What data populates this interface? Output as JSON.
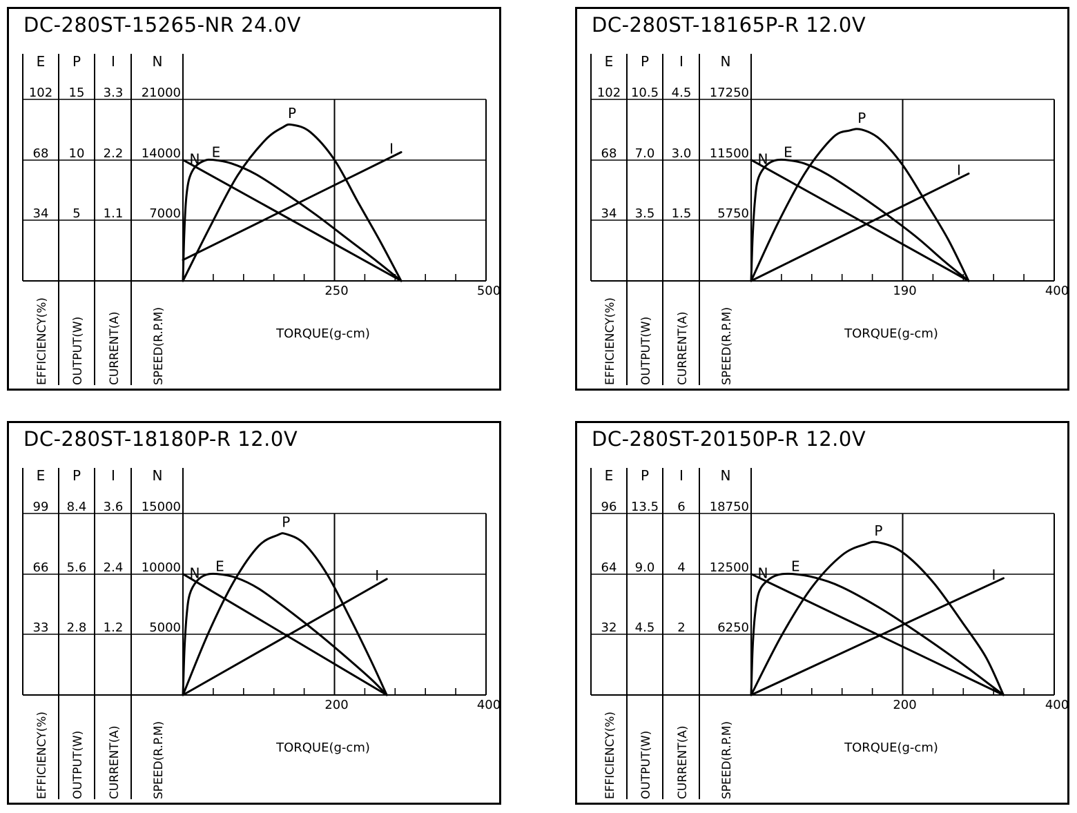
{
  "chart_data": [
    {
      "type": "line",
      "title": "DC-280ST-15265-NR   24.0V",
      "xlabel": "TORQUE(g-cm)",
      "xlim": [
        0,
        500
      ],
      "x_ticks": [
        "250",
        "500"
      ],
      "column_headers": [
        "E",
        "P",
        "I",
        "N"
      ],
      "axis_labels": [
        "EFFICIENCY(%)",
        "OUTPUT(W)",
        "CURRENT(A)",
        "SPEED(R.P.M)"
      ],
      "scales": {
        "E": [
          "102",
          "68",
          "34"
        ],
        "P": [
          "15",
          "10",
          "5"
        ],
        "I": [
          "3.3",
          "2.2",
          "1.1"
        ],
        "N": [
          "21000",
          "14000",
          "7000"
        ]
      },
      "curve_labels": [
        "N",
        "E",
        "P",
        "I"
      ],
      "series": [
        {
          "name": "N",
          "unit": "RPM",
          "points": [
            [
              0,
              14000
            ],
            [
              360,
              0
            ]
          ]
        },
        {
          "name": "I",
          "unit": "A",
          "points": [
            [
              0,
              0.38
            ],
            [
              360,
              2.34
            ]
          ]
        },
        {
          "name": "P",
          "unit": "W",
          "points": [
            [
              0,
              0
            ],
            [
              45,
              4.5
            ],
            [
              90,
              8.7
            ],
            [
              135,
              11.6
            ],
            [
              165,
              12.7
            ],
            [
              180,
              12.9
            ],
            [
              210,
              12.3
            ],
            [
              250,
              10.0
            ],
            [
              290,
              6.4
            ],
            [
              325,
              3.3
            ],
            [
              360,
              0
            ]
          ]
        },
        {
          "name": "E",
          "unit": "%",
          "points": [
            [
              0,
              0
            ],
            [
              2,
              25
            ],
            [
              5,
              45
            ],
            [
              10,
              57
            ],
            [
              20,
              64
            ],
            [
              35,
              67.5
            ],
            [
              50,
              68
            ],
            [
              80,
              66
            ],
            [
              120,
              60
            ],
            [
              170,
              49
            ],
            [
              220,
              37
            ],
            [
              270,
              24
            ],
            [
              320,
              11
            ],
            [
              360,
              0
            ]
          ]
        }
      ]
    },
    {
      "type": "line",
      "title": "DC-280ST-18165P-R   12.0V",
      "xlabel": "TORQUE(g-cm)",
      "xlim": [
        0,
        400
      ],
      "x_ticks": [
        "190",
        "400"
      ],
      "column_headers": [
        "E",
        "P",
        "I",
        "N"
      ],
      "axis_labels": [
        "EFFICIENCY(%)",
        "OUTPUT(W)",
        "CURRENT(A)",
        "SPEED(R.P.M)"
      ],
      "scales": {
        "E": [
          "102",
          "68",
          "34"
        ],
        "P": [
          "10.5",
          "7.0",
          "3.5"
        ],
        "I": [
          "4.5",
          "3.0",
          "1.5"
        ],
        "N": [
          "17250",
          "11500",
          "5750"
        ]
      },
      "curve_labels": [
        "N",
        "E",
        "P",
        "I"
      ],
      "series": [
        {
          "name": "N",
          "unit": "RPM",
          "points": [
            [
              0,
              11500
            ],
            [
              287,
              0
            ]
          ]
        },
        {
          "name": "I",
          "unit": "A",
          "points": [
            [
              0,
              0
            ],
            [
              287,
              2.66
            ]
          ]
        },
        {
          "name": "P",
          "unit": "W",
          "points": [
            [
              0,
              0
            ],
            [
              36,
              3.4
            ],
            [
              72,
              6.3
            ],
            [
              108,
              8.3
            ],
            [
              130,
              8.7
            ],
            [
              146,
              8.75
            ],
            [
              170,
              8.2
            ],
            [
              200,
              6.7
            ],
            [
              230,
              4.6
            ],
            [
              260,
              2.4
            ],
            [
              287,
              0
            ]
          ]
        },
        {
          "name": "E",
          "unit": "%",
          "points": [
            [
              0,
              0
            ],
            [
              2,
              25
            ],
            [
              5,
              45
            ],
            [
              9,
              57
            ],
            [
              18,
              64
            ],
            [
              30,
              67.5
            ],
            [
              45,
              68
            ],
            [
              70,
              66
            ],
            [
              100,
              60
            ],
            [
              140,
              49
            ],
            [
              180,
              37
            ],
            [
              220,
              24
            ],
            [
              255,
              11
            ],
            [
              287,
              0
            ]
          ]
        }
      ]
    },
    {
      "type": "line",
      "title": "DC-280ST-18180P-R   12.0V",
      "xlabel": "TORQUE(g-cm)",
      "xlim": [
        0,
        400
      ],
      "x_ticks": [
        "200",
        "400"
      ],
      "column_headers": [
        "E",
        "P",
        "I",
        "N"
      ],
      "axis_labels": [
        "EFFICIENCY(%)",
        "OUTPUT(W)",
        "CURRENT(A)",
        "SPEED(R.P.M)"
      ],
      "scales": {
        "E": [
          "99",
          "66",
          "33"
        ],
        "P": [
          "8.4",
          "5.6",
          "2.8"
        ],
        "I": [
          "3.6",
          "2.4",
          "1.2"
        ],
        "N": [
          "15000",
          "10000",
          "5000"
        ]
      },
      "curve_labels": [
        "N",
        "E",
        "P",
        "I"
      ],
      "series": [
        {
          "name": "N",
          "unit": "RPM",
          "points": [
            [
              0,
              10000
            ],
            [
              269,
              0
            ]
          ]
        },
        {
          "name": "I",
          "unit": "A",
          "points": [
            [
              0,
              0
            ],
            [
              269,
              2.3
            ]
          ]
        },
        {
          "name": "P",
          "unit": "W",
          "points": [
            [
              0,
              0
            ],
            [
              34,
              2.9
            ],
            [
              68,
              5.3
            ],
            [
              100,
              6.9
            ],
            [
              125,
              7.4
            ],
            [
              136,
              7.45
            ],
            [
              160,
              7.0
            ],
            [
              190,
              5.6
            ],
            [
              220,
              3.6
            ],
            [
              248,
              1.6
            ],
            [
              269,
              0
            ]
          ]
        },
        {
          "name": "E",
          "unit": "%",
          "points": [
            [
              0,
              0
            ],
            [
              2,
              25
            ],
            [
              5,
              44
            ],
            [
              9,
              55
            ],
            [
              18,
              62
            ],
            [
              30,
              65.5
            ],
            [
              45,
              66
            ],
            [
              70,
              64
            ],
            [
              100,
              58
            ],
            [
              140,
              46
            ],
            [
              180,
              33
            ],
            [
              220,
              19
            ],
            [
              250,
              8
            ],
            [
              269,
              0
            ]
          ]
        }
      ]
    },
    {
      "type": "line",
      "title": "DC-280ST-20150P-R   12.0V",
      "xlabel": "TORQUE(g-cm)",
      "xlim": [
        0,
        400
      ],
      "x_ticks": [
        "200",
        "400"
      ],
      "column_headers": [
        "E",
        "P",
        "I",
        "N"
      ],
      "axis_labels": [
        "EFFICIENCY(%)",
        "OUTPUT(W)",
        "CURRENT(A)",
        "SPEED(R.P.M)"
      ],
      "scales": {
        "E": [
          "96",
          "64",
          "32"
        ],
        "P": [
          "13.5",
          "9.0",
          "4.5"
        ],
        "I": [
          "6",
          "4",
          "2"
        ],
        "N": [
          "18750",
          "12500",
          "6250"
        ]
      },
      "curve_labels": [
        "N",
        "E",
        "P",
        "I"
      ],
      "series": [
        {
          "name": "N",
          "unit": "RPM",
          "points": [
            [
              0,
              12500
            ],
            [
              333,
              0
            ]
          ]
        },
        {
          "name": "I",
          "unit": "A",
          "points": [
            [
              0,
              0
            ],
            [
              333,
              3.86
            ]
          ]
        },
        {
          "name": "P",
          "unit": "W",
          "points": [
            [
              0,
              0
            ],
            [
              40,
              4.4
            ],
            [
              80,
              8.0
            ],
            [
              120,
              10.4
            ],
            [
              150,
              11.2
            ],
            [
              168,
              11.35
            ],
            [
              200,
              10.6
            ],
            [
              240,
              8.4
            ],
            [
              280,
              5.3
            ],
            [
              310,
              2.8
            ],
            [
              333,
              0
            ]
          ]
        },
        {
          "name": "E",
          "unit": "%",
          "points": [
            [
              0,
              0
            ],
            [
              2,
              25
            ],
            [
              5,
              42
            ],
            [
              10,
              54
            ],
            [
              20,
              60
            ],
            [
              35,
              63.5
            ],
            [
              55,
              64
            ],
            [
              85,
              62
            ],
            [
              120,
              57
            ],
            [
              170,
              46
            ],
            [
              220,
              33
            ],
            [
              270,
              19
            ],
            [
              310,
              7
            ],
            [
              333,
              0
            ]
          ]
        }
      ]
    }
  ]
}
